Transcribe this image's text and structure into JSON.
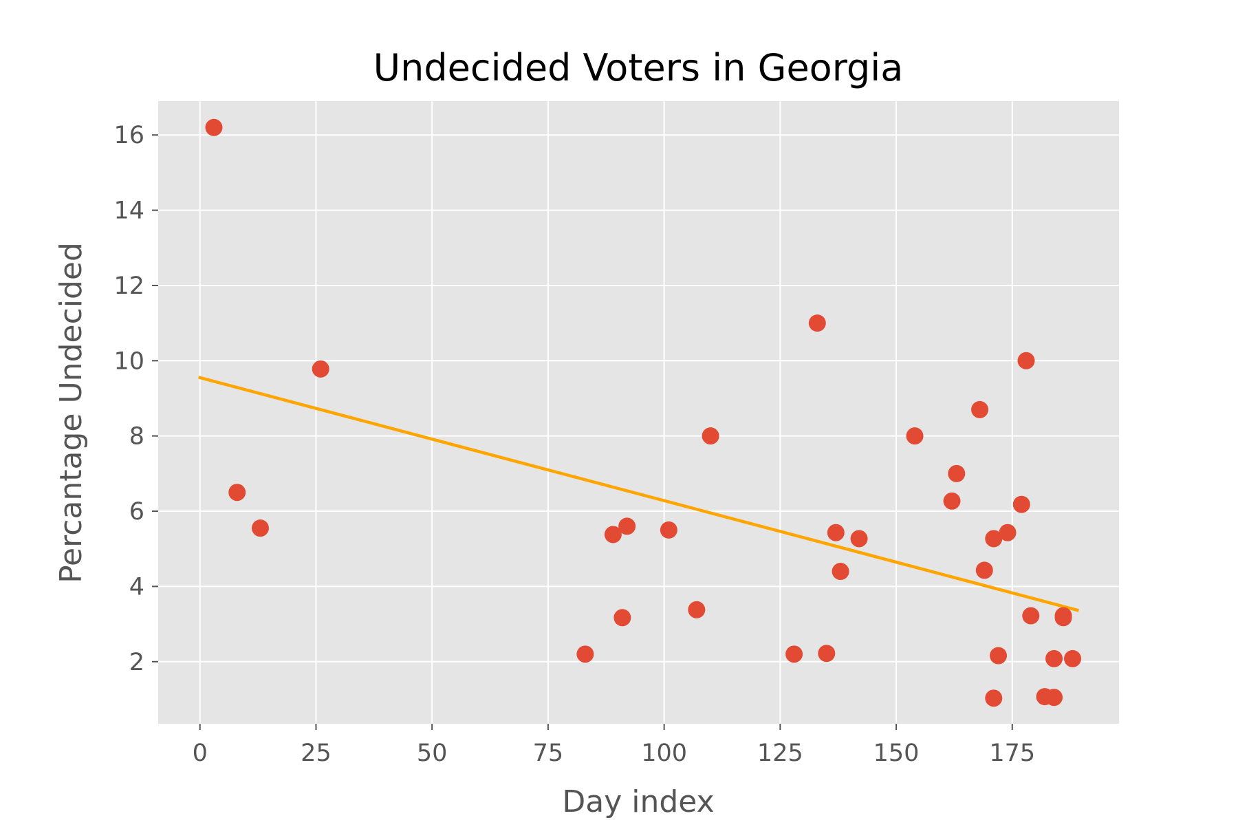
{
  "chart_data": {
    "type": "scatter",
    "title": "Undecided Voters in Georgia",
    "xlabel": "Day index",
    "ylabel": "Percantage Undecided",
    "xlim": [
      -9,
      198
    ],
    "ylim": [
      0.35,
      16.9
    ],
    "grid": true,
    "x_ticks": [
      0,
      25,
      50,
      75,
      100,
      125,
      150,
      175
    ],
    "y_ticks": [
      2,
      4,
      6,
      8,
      10,
      12,
      14,
      16
    ],
    "colors": {
      "background": "#e5e5e5",
      "grid": "#ffffff",
      "points": "#e24a33",
      "trendline": "#ffa500",
      "ticks": "#555555"
    },
    "series": [
      {
        "kind": "scatter",
        "points": [
          [
            3,
            16.2
          ],
          [
            8,
            6.5
          ],
          [
            13,
            5.55
          ],
          [
            26,
            9.78
          ],
          [
            83,
            2.2
          ],
          [
            89,
            5.38
          ],
          [
            91,
            3.17
          ],
          [
            92,
            5.6
          ],
          [
            101,
            5.5
          ],
          [
            107,
            3.38
          ],
          [
            110,
            8.0
          ],
          [
            128,
            2.2
          ],
          [
            133,
            11.0
          ],
          [
            135,
            2.22
          ],
          [
            137,
            5.43
          ],
          [
            138,
            4.4
          ],
          [
            142,
            5.27
          ],
          [
            154,
            8.0
          ],
          [
            162,
            6.27
          ],
          [
            163,
            7.0
          ],
          [
            168,
            8.7
          ],
          [
            169,
            4.43
          ],
          [
            171,
            5.27
          ],
          [
            171,
            1.03
          ],
          [
            172,
            2.16
          ],
          [
            174,
            5.43
          ],
          [
            177,
            6.18
          ],
          [
            178,
            10.0
          ],
          [
            179,
            3.22
          ],
          [
            182,
            1.07
          ],
          [
            184,
            2.08
          ],
          [
            184,
            1.05
          ],
          [
            186,
            3.17
          ],
          [
            186,
            3.22
          ],
          [
            188,
            2.08
          ]
        ]
      },
      {
        "kind": "line",
        "points": [
          [
            0,
            9.55
          ],
          [
            189,
            3.37
          ]
        ]
      }
    ]
  }
}
